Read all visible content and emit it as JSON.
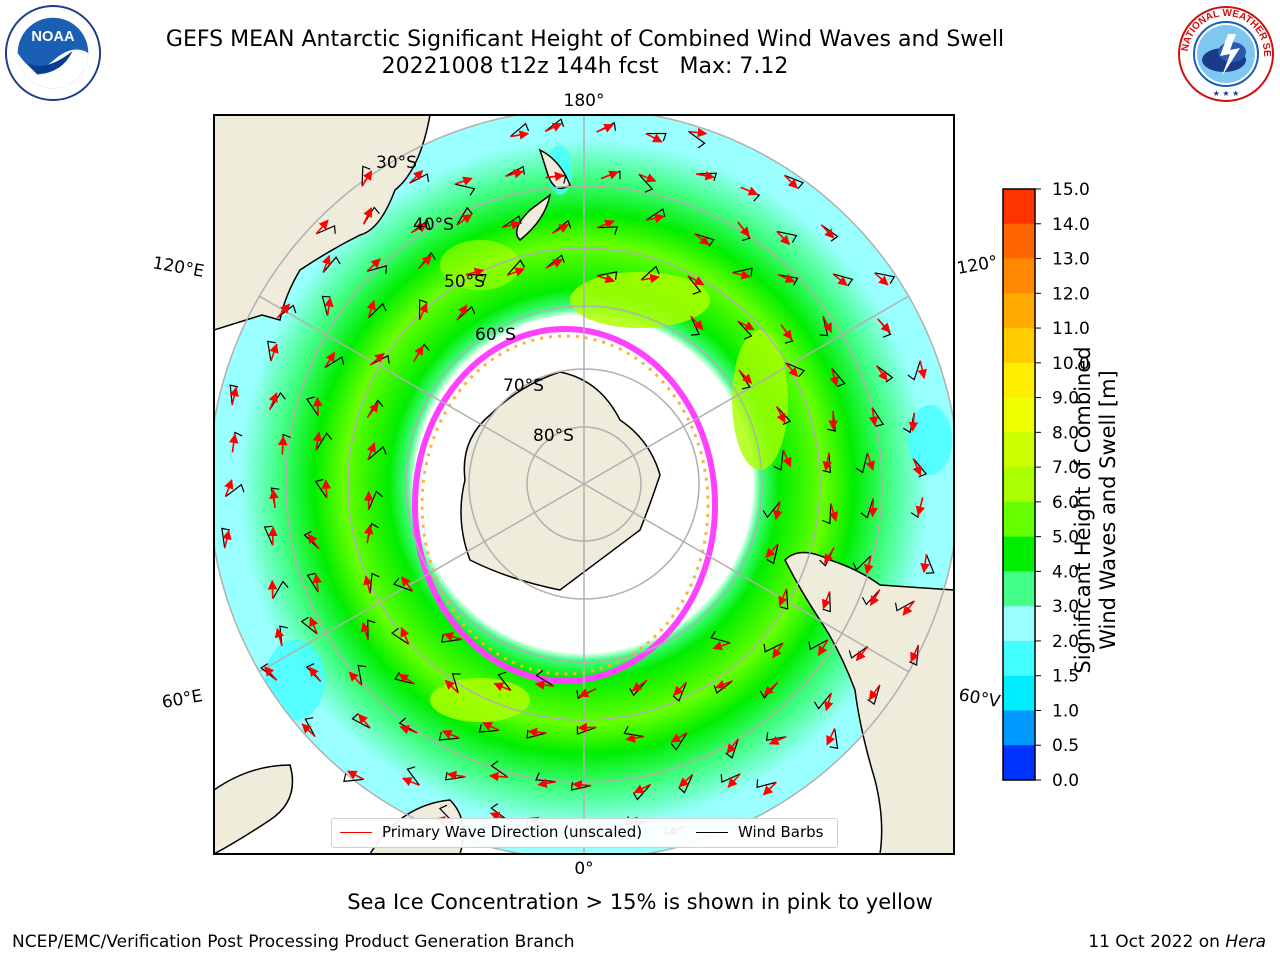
{
  "title": {
    "line1": "GEFS MEAN Antarctic Significant Height of Combined Wind Waves and Swell",
    "line2": "20221008 t12z 144h fcst   Max: 7.12"
  },
  "map": {
    "projection": "south-polar-stereographic",
    "longitude_labels": {
      "top": "180°",
      "bottom": "0°",
      "left_upper": "120°E",
      "left_lower": "60°E",
      "right_upper": "120°",
      "right_lower": "60°V"
    },
    "latitude_labels": [
      "30°S",
      "40°S",
      "50°S",
      "60°S",
      "70°S",
      "80°S"
    ],
    "colors": {
      "land": "#efecdc",
      "ice_pink": "#ff40ff",
      "ice_yellow": "#ffb040",
      "wave_arrow": "#ff0000",
      "wind_barb": "#000000"
    }
  },
  "colorbar": {
    "ticks": [
      "15.0",
      "14.0",
      "13.0",
      "12.0",
      "11.0",
      "10.0",
      "9.0",
      "8.0",
      "7.0",
      "6.0",
      "5.0",
      "4.0",
      "3.0",
      "2.0",
      "1.5",
      "1.0",
      "0.5",
      "0.0"
    ],
    "colors": [
      "#ff0000",
      "#ff3300",
      "#ff6600",
      "#ff8800",
      "#ffaa00",
      "#ffcc00",
      "#ffee00",
      "#eeff00",
      "#ccff00",
      "#aaff00",
      "#66ff00",
      "#00ee00",
      "#44ff88",
      "#99ffff",
      "#44ffff",
      "#00eeff",
      "#0099ff",
      "#0033ff",
      "#0000ff"
    ],
    "label": "Significant Height of Combined\nWind Waves and Swell [m]"
  },
  "legend": {
    "items": [
      {
        "label": "Primary Wave Direction (unscaled)",
        "color": "#ff0000"
      },
      {
        "label": "Wind Barbs",
        "color": "#000000"
      }
    ]
  },
  "note": "Sea Ice Concentration > 15% is shown in pink to yellow",
  "footer": {
    "left": "NCEP/EMC/Verification Post Processing Product Generation Branch",
    "right_prefix": "11 Oct 2022 on ",
    "right_italic": "Hera"
  },
  "logos": {
    "noaa": "NOAA",
    "nws": "NATIONAL WEATHER SERVICE"
  }
}
